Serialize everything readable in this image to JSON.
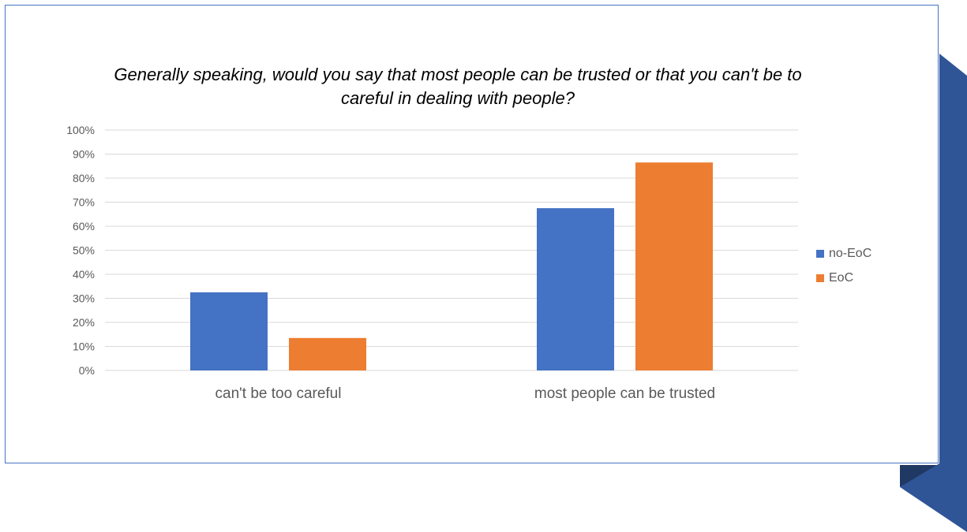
{
  "chart_data": {
    "type": "bar",
    "title": "Generally speaking, would you say that most people can be trusted or that you can't be to careful in dealing with people?",
    "categories": [
      "can't be too careful",
      "most people can be trusted"
    ],
    "series": [
      {
        "name": "no-EoC",
        "values": [
          32.5,
          67.5
        ],
        "color": "#4472c4"
      },
      {
        "name": "EoC",
        "values": [
          13.5,
          86.5
        ],
        "color": "#ed7d31"
      }
    ],
    "yticks": [
      "0%",
      "10%",
      "20%",
      "30%",
      "40%",
      "50%",
      "60%",
      "70%",
      "80%",
      "90%",
      "100%"
    ],
    "ylim": [
      0,
      100
    ],
    "grid": true,
    "legend_position": "right"
  },
  "colors": {
    "frame": "#4472c4",
    "ribbon": "#2f5597",
    "ribbon_shadow": "#203864",
    "gridline": "#d9d9d9",
    "axis_text": "#595959"
  }
}
